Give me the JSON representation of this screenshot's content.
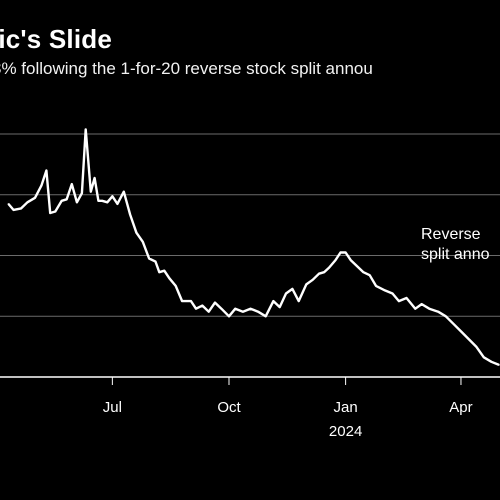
{
  "chart_data": {
    "type": "line",
    "title": "ric's Slide",
    "subtitle": "3% following the 1-for-20 reverse stock split annou",
    "x_ticks": [
      "Jul",
      "Oct",
      "Jan",
      "Apr"
    ],
    "x_tick_years": [
      "",
      "",
      "2024",
      ""
    ],
    "annotation": {
      "line1": "Reverse",
      "line2": "split anno"
    },
    "grid": true,
    "legend": "none",
    "series_color": "#ffffff",
    "series": [
      {
        "name": "",
        "x": [
          "2023-04-10",
          "2023-04-14",
          "2023-04-20",
          "2023-04-25",
          "2023-05-01",
          "2023-05-06",
          "2023-05-10",
          "2023-05-13",
          "2023-05-17",
          "2023-05-22",
          "2023-05-26",
          "2023-05-30",
          "2023-06-03",
          "2023-06-07",
          "2023-06-10",
          "2023-06-14",
          "2023-06-17",
          "2023-06-20",
          "2023-06-23",
          "2023-06-27",
          "2023-07-01",
          "2023-07-05",
          "2023-07-10",
          "2023-07-15",
          "2023-07-20",
          "2023-07-25",
          "2023-07-30",
          "2023-08-04",
          "2023-08-07",
          "2023-08-11",
          "2023-08-15",
          "2023-08-20",
          "2023-08-25",
          "2023-09-01",
          "2023-09-05",
          "2023-09-10",
          "2023-09-15",
          "2023-09-20",
          "2023-09-25",
          "2023-10-01",
          "2023-10-06",
          "2023-10-12",
          "2023-10-18",
          "2023-10-24",
          "2023-10-30",
          "2023-11-05",
          "2023-11-10",
          "2023-11-15",
          "2023-11-20",
          "2023-11-25",
          "2023-12-01",
          "2023-12-06",
          "2023-12-11",
          "2023-12-15",
          "2023-12-19",
          "2023-12-24",
          "2023-12-28",
          "2024-01-01",
          "2024-01-05",
          "2024-01-10",
          "2024-01-15",
          "2024-01-20",
          "2024-01-25",
          "2024-02-01",
          "2024-02-07",
          "2024-02-12",
          "2024-02-18",
          "2024-02-25",
          "2024-03-01",
          "2024-03-07",
          "2024-03-14",
          "2024-03-20",
          "2024-03-26",
          "2024-04-01",
          "2024-04-07",
          "2024-04-13",
          "2024-04-19",
          "2024-04-25",
          "2024-05-01"
        ],
        "values": [
          74,
          70,
          71,
          75,
          78,
          86,
          96,
          68,
          69,
          76,
          77,
          87,
          75,
          81,
          123,
          82,
          91,
          76,
          76,
          75,
          79,
          74,
          82,
          67,
          55,
          49,
          38,
          36,
          29,
          30,
          25,
          20,
          10,
          10,
          5,
          7,
          3,
          9,
          5,
          0,
          5,
          3,
          5,
          3,
          0,
          10,
          6,
          15,
          18,
          10,
          21,
          24,
          28,
          29,
          32,
          37,
          42,
          42,
          37,
          33,
          29,
          27,
          20,
          17,
          15,
          10,
          12,
          5,
          8,
          5,
          3,
          0,
          -5,
          -10,
          -15,
          -20,
          -27,
          -30,
          -32
        ]
      }
    ],
    "y_grid_values": [
      120,
      80,
      40,
      0,
      -40
    ]
  }
}
